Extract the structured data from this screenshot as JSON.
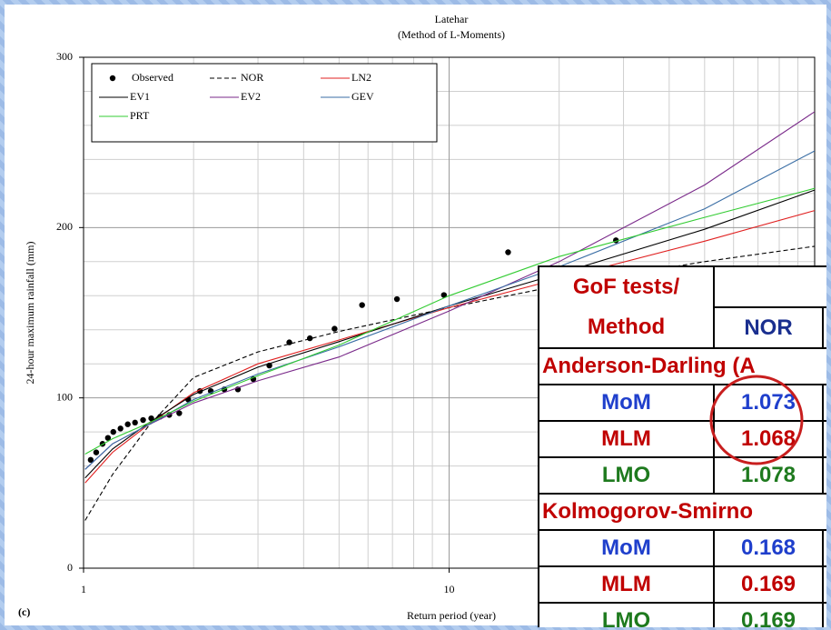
{
  "chart_data": {
    "type": "line",
    "title": "Latehar",
    "subtitle": "(Method of L-Moments)",
    "xlabel": "Return period (year)",
    "ylabel": "24-hour maximum rainfall (mm)",
    "panel_label": "(c)",
    "xscale": "log",
    "xlim": [
      1,
      100
    ],
    "xticks": [
      1,
      10
    ],
    "xminor": [
      2,
      3,
      4,
      5,
      6,
      7,
      8,
      9,
      20,
      30,
      40,
      50,
      60,
      70,
      80,
      90
    ],
    "ylim": [
      0,
      300
    ],
    "yticks": [
      0,
      100,
      200,
      300
    ],
    "yminor": [
      20,
      40,
      60,
      80,
      120,
      140,
      160,
      180,
      220,
      240,
      260,
      280
    ],
    "grid": true,
    "legend": "upper left",
    "series": [
      {
        "name": "Observed",
        "color": "#000000",
        "style": "marker",
        "x": [
          1.046,
          1.083,
          1.127,
          1.166,
          1.206,
          1.262,
          1.321,
          1.383,
          1.455,
          1.532,
          1.621,
          1.716,
          1.827,
          1.933,
          2.082,
          2.229,
          2.427,
          2.644,
          2.914,
          3.223,
          3.655,
          4.16,
          4.86,
          5.78,
          7.2,
          9.68,
          14.5,
          28.6
        ],
        "values": [
          63.6,
          68,
          73,
          76.5,
          80,
          82,
          84.5,
          85.5,
          87,
          88,
          89,
          90,
          91,
          99,
          104,
          104,
          105,
          105,
          111,
          119,
          132.6,
          135,
          140.6,
          154.5,
          158,
          160.4,
          185.5,
          192.5
        ]
      },
      {
        "name": "NOR",
        "color": "#000000",
        "style": "dashed",
        "x": [
          1.01,
          1.2,
          1.5,
          2,
          3,
          5,
          10,
          20,
          50,
          100
        ],
        "values": [
          28,
          55,
          83,
          112,
          127,
          139,
          153,
          166,
          180,
          189
        ]
      },
      {
        "name": "LN2",
        "color": "#e02020",
        "style": "solid",
        "x": [
          1.01,
          1.2,
          1.5,
          2,
          3,
          5,
          10,
          20,
          50,
          100
        ],
        "values": [
          50,
          68,
          84,
          103,
          120,
          134,
          153,
          170,
          192,
          210
        ]
      },
      {
        "name": "EV1",
        "color": "#000000",
        "style": "solid",
        "x": [
          1.01,
          1.2,
          1.5,
          2,
          3,
          5,
          10,
          20,
          50,
          100
        ],
        "values": [
          53,
          70,
          85,
          102,
          118,
          133,
          154,
          173,
          199,
          222
        ]
      },
      {
        "name": "EV2",
        "color": "#7a2a8a",
        "style": "solid",
        "x": [
          1.01,
          1.2,
          1.5,
          2,
          3,
          5,
          10,
          20,
          50,
          100
        ],
        "values": [
          58,
          73,
          84,
          97,
          110,
          124,
          151,
          180,
          225,
          268
        ]
      },
      {
        "name": "GEV",
        "color": "#3a6ea5",
        "style": "solid",
        "x": [
          1.01,
          1.2,
          1.5,
          2,
          3,
          5,
          10,
          20,
          50,
          100
        ],
        "values": [
          58,
          73,
          84,
          99,
          114,
          130,
          154,
          177,
          211,
          245
        ]
      },
      {
        "name": "PRT",
        "color": "#33cc33",
        "style": "solid",
        "x": [
          1.01,
          1.2,
          1.5,
          2,
          3,
          5,
          10,
          20,
          50,
          100
        ],
        "values": [
          67,
          76,
          85,
          98,
          113,
          131,
          160,
          183,
          206,
          223
        ]
      }
    ]
  },
  "table": {
    "header": [
      "GoF tests/",
      "Method"
    ],
    "columns": [
      "NOR"
    ],
    "sections": [
      {
        "title": "Anderson-Darling (A",
        "rows": [
          [
            "MoM",
            1.073
          ],
          [
            "MLM",
            1.068
          ],
          [
            "LMO",
            1.078
          ]
        ]
      },
      {
        "title": "Kolmogorov-Smirno",
        "rows": [
          [
            "MoM",
            0.168
          ],
          [
            "MLM",
            0.169
          ],
          [
            "LMO",
            0.169
          ]
        ]
      }
    ]
  }
}
